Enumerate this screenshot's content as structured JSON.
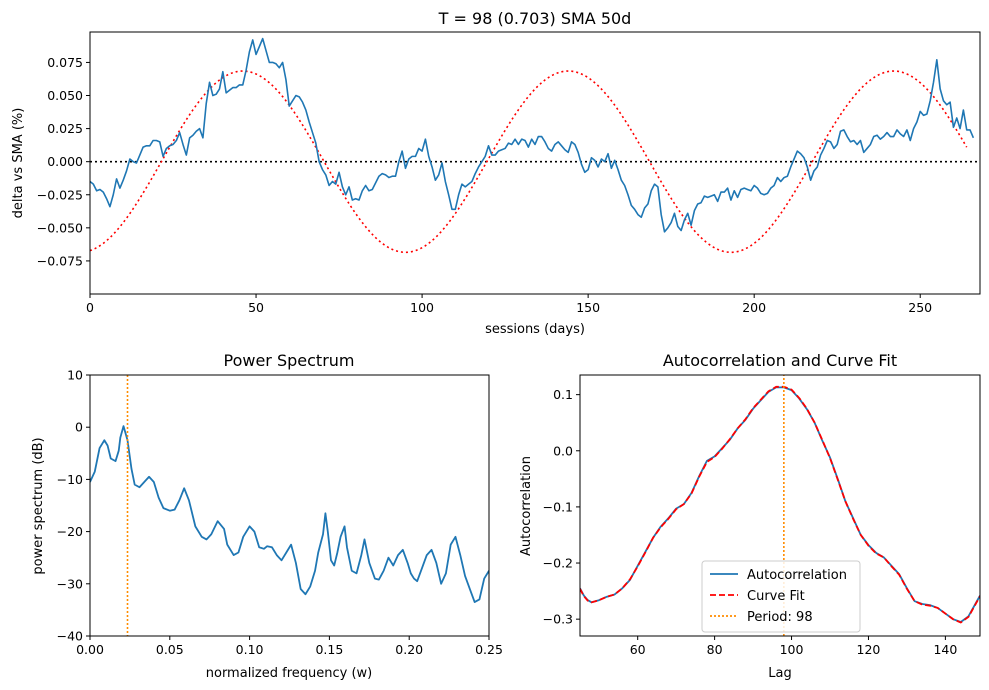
{
  "chart_data": [
    {
      "type": "line",
      "title": "T = 98 (0.703)      SMA 50d",
      "xlabel": "sessions (days)",
      "ylabel": "delta vs SMA (%)",
      "xlim": [
        0,
        268
      ],
      "ylim": [
        -0.1,
        0.098
      ],
      "xticks": [
        0,
        50,
        100,
        150,
        200,
        250
      ],
      "yticks": [
        -0.075,
        -0.05,
        -0.025,
        0.0,
        0.025,
        0.05,
        0.075
      ],
      "ytick_labels": [
        "−0.075",
        "−0.050",
        "−0.025",
        "0.000",
        "0.025",
        "0.050",
        "0.075"
      ],
      "grid": false,
      "colors": {
        "series": "#1f77b4",
        "fit": "#ff0000",
        "zero": "#000000"
      },
      "series": [
        {
          "kind": "data",
          "x_start": 0,
          "x_step": 1,
          "values": [
            -0.015,
            -0.017,
            -0.022,
            -0.021,
            -0.023,
            -0.028,
            -0.034,
            -0.025,
            -0.013,
            -0.02,
            -0.014,
            -0.007,
            0.002,
            0.0,
            -0.001,
            0.005,
            0.011,
            0.012,
            0.012,
            0.016,
            0.016,
            0.015,
            0.004,
            0.01,
            0.012,
            0.013,
            0.016,
            0.022,
            0.013,
            0.005,
            0.018,
            0.02,
            0.023,
            0.025,
            0.018,
            0.044,
            0.06,
            0.05,
            0.051,
            0.055,
            0.068,
            0.052,
            0.054,
            0.056,
            0.056,
            0.058,
            0.058,
            0.069,
            0.083,
            0.092,
            0.081,
            0.087,
            0.093,
            0.084,
            0.075,
            0.075,
            0.074,
            0.071,
            0.075,
            0.062,
            0.042,
            0.046,
            0.05,
            0.049,
            0.045,
            0.039,
            0.03,
            0.022,
            0.014,
            0.0,
            -0.006,
            -0.01,
            -0.018,
            -0.015,
            -0.017,
            -0.008,
            -0.019,
            -0.025,
            -0.019,
            -0.029,
            -0.028,
            -0.029,
            -0.022,
            -0.018,
            -0.022,
            -0.021,
            -0.016,
            -0.011,
            -0.009,
            -0.01,
            -0.012,
            -0.011,
            -0.011,
            0.0,
            0.008,
            -0.005,
            0.002,
            0.004,
            0.004,
            0.01,
            0.008,
            0.017,
            0.004,
            -0.004,
            -0.014,
            -0.01,
            -0.001,
            -0.015,
            -0.025,
            -0.036,
            -0.036,
            -0.025,
            -0.017,
            -0.019,
            -0.017,
            -0.015,
            -0.009,
            -0.004,
            0.0,
            0.004,
            0.012,
            0.005,
            0.005,
            0.008,
            0.009,
            0.01,
            0.014,
            0.013,
            0.017,
            0.013,
            0.017,
            0.016,
            0.011,
            0.017,
            0.013,
            0.019,
            0.019,
            0.015,
            0.01,
            0.008,
            0.013,
            0.015,
            0.012,
            0.009,
            0.007,
            0.015,
            0.013,
            0.007,
            -0.002,
            -0.008,
            -0.006,
            0.003,
            0.001,
            -0.004,
            0.002,
            0.0,
            0.006,
            -0.005,
            0.001,
            -0.006,
            -0.014,
            -0.018,
            -0.025,
            -0.033,
            -0.036,
            -0.04,
            -0.042,
            -0.035,
            -0.032,
            -0.022,
            -0.017,
            -0.019,
            -0.04,
            -0.053,
            -0.05,
            -0.046,
            -0.039,
            -0.049,
            -0.052,
            -0.044,
            -0.039,
            -0.048,
            -0.037,
            -0.032,
            -0.031,
            -0.026,
            -0.027,
            -0.026,
            -0.025,
            -0.03,
            -0.023,
            -0.023,
            -0.02,
            -0.029,
            -0.022,
            -0.027,
            -0.021,
            -0.02,
            -0.021,
            -0.022,
            -0.018,
            -0.02,
            -0.024,
            -0.025,
            -0.024,
            -0.02,
            -0.018,
            -0.012,
            -0.015,
            -0.012,
            -0.011,
            -0.004,
            0.002,
            0.008,
            0.006,
            0.003,
            -0.004,
            -0.014,
            -0.007,
            -0.004,
            0.005,
            0.01,
            0.016,
            0.015,
            0.01,
            0.013,
            0.023,
            0.024,
            0.019,
            0.015,
            0.016,
            0.013,
            0.016,
            0.007,
            0.01,
            0.013,
            0.019,
            0.02,
            0.017,
            0.019,
            0.022,
            0.019,
            0.019,
            0.024,
            0.021,
            0.019,
            0.024,
            0.016,
            0.025,
            0.03,
            0.038,
            0.035,
            0.036,
            0.046,
            0.06,
            0.077,
            0.055,
            0.046,
            0.043,
            0.045,
            0.026,
            0.033,
            0.025,
            0.039,
            0.024,
            0.024,
            0.018
          ]
        },
        {
          "kind": "fit",
          "function": "sine",
          "amplitude": 0.0685,
          "period": 98,
          "peak_x": 46,
          "x_range": [
            0,
            264
          ]
        },
        {
          "kind": "reference",
          "y": 0.0,
          "x_range": [
            0,
            268
          ]
        }
      ]
    },
    {
      "type": "line",
      "title": "Power Spectrum",
      "xlabel": "normalized frequency (w)",
      "ylabel": "power spectrum (dB)",
      "xlim": [
        0,
        0.25
      ],
      "ylim": [
        -40,
        10
      ],
      "xticks": [
        0.0,
        0.05,
        0.1,
        0.15,
        0.2,
        0.25
      ],
      "xtick_labels": [
        "0.00",
        "0.05",
        "0.10",
        "0.15",
        "0.20",
        "0.25"
      ],
      "yticks": [
        -40,
        -30,
        -20,
        -10,
        0,
        10
      ],
      "ytick_labels": [
        "−40",
        "−30",
        "−20",
        "−10",
        "0",
        "10"
      ],
      "grid": false,
      "colors": {
        "series": "#1f77b4",
        "marker": "#ff8c00"
      },
      "marker_x": 0.0235,
      "series": [
        {
          "x": [
            0.0,
            0.003,
            0.006,
            0.009,
            0.011,
            0.013,
            0.016,
            0.018,
            0.019,
            0.021,
            0.0235,
            0.026,
            0.028,
            0.031,
            0.034,
            0.037,
            0.04,
            0.043,
            0.046,
            0.05,
            0.053,
            0.056,
            0.059,
            0.062,
            0.066,
            0.07,
            0.073,
            0.076,
            0.08,
            0.084,
            0.086,
            0.09,
            0.093,
            0.096,
            0.1,
            0.103,
            0.106,
            0.109,
            0.111,
            0.114,
            0.117,
            0.12,
            0.123,
            0.126,
            0.129,
            0.132,
            0.135,
            0.138,
            0.141,
            0.143,
            0.146,
            0.1475,
            0.149,
            0.151,
            0.153,
            0.155,
            0.157,
            0.1595,
            0.161,
            0.164,
            0.167,
            0.17,
            0.172,
            0.175,
            0.1785,
            0.181,
            0.184,
            0.187,
            0.19,
            0.193,
            0.196,
            0.199,
            0.201,
            0.203,
            0.205,
            0.208,
            0.211,
            0.214,
            0.217,
            0.22,
            0.223,
            0.226,
            0.229,
            0.232,
            0.235,
            0.238,
            0.241,
            0.244,
            0.247,
            0.25
          ],
          "values": [
            -10.5,
            -8.5,
            -4.0,
            -2.5,
            -3.5,
            -6.0,
            -6.5,
            -4.5,
            -2.0,
            0.2,
            -2.5,
            -8.0,
            -11.0,
            -11.5,
            -10.5,
            -9.5,
            -10.5,
            -13.5,
            -15.5,
            -16.0,
            -15.8,
            -14.0,
            -11.7,
            -14.0,
            -19.0,
            -21.0,
            -21.5,
            -20.5,
            -18.0,
            -19.5,
            -22.5,
            -24.5,
            -24.0,
            -21.0,
            -19.0,
            -20.0,
            -23.0,
            -23.3,
            -22.8,
            -23.0,
            -24.5,
            -25.5,
            -24.0,
            -22.5,
            -26.0,
            -31.0,
            -32.0,
            -30.5,
            -27.5,
            -24.0,
            -20.5,
            -16.5,
            -20.0,
            -25.5,
            -26.5,
            -24.0,
            -21.0,
            -19.0,
            -23.0,
            -27.5,
            -28.0,
            -24.5,
            -21.5,
            -26.0,
            -29.0,
            -29.2,
            -27.5,
            -25.0,
            -26.5,
            -24.5,
            -23.5,
            -26.0,
            -28.0,
            -29.0,
            -29.5,
            -27.0,
            -24.5,
            -23.5,
            -26.0,
            -30.0,
            -28.0,
            -22.5,
            -21.0,
            -24.5,
            -28.5,
            -31.0,
            -33.5,
            -33.0,
            -29.0,
            -27.5
          ]
        }
      ]
    },
    {
      "type": "line",
      "title": "Autocorrelation and Curve Fit",
      "xlabel": "Lag",
      "ylabel": "Autocorrelation",
      "xlim": [
        45,
        149
      ],
      "ylim": [
        -0.33,
        0.135
      ],
      "xticks": [
        60,
        80,
        100,
        120,
        140
      ],
      "yticks": [
        -0.3,
        -0.2,
        -0.1,
        0.0,
        0.1
      ],
      "ytick_labels": [
        "−0.3",
        "−0.2",
        "−0.1",
        "0.0",
        "0.1"
      ],
      "grid": false,
      "legend": "lower-center",
      "colors": {
        "autocorr": "#1f77b4",
        "fit": "#ff0000",
        "period": "#ff8c00"
      },
      "marker_x": 98,
      "series": [
        {
          "name": "Autocorrelation",
          "x": [
            45,
            46,
            47,
            48,
            49,
            50,
            52,
            54,
            56,
            58,
            60,
            62,
            64,
            66,
            68,
            70,
            72,
            74,
            76,
            78,
            80,
            82,
            84,
            86,
            88,
            90,
            92,
            94,
            96,
            98,
            100,
            102,
            104,
            106,
            108,
            110,
            112,
            114,
            116,
            118,
            120,
            122,
            124,
            126,
            128,
            130,
            132,
            134,
            136,
            138,
            140,
            142,
            144,
            146,
            149
          ],
          "values": [
            -0.245,
            -0.258,
            -0.266,
            -0.27,
            -0.268,
            -0.266,
            -0.26,
            -0.256,
            -0.245,
            -0.23,
            -0.205,
            -0.18,
            -0.155,
            -0.135,
            -0.12,
            -0.103,
            -0.095,
            -0.075,
            -0.045,
            -0.018,
            -0.01,
            0.005,
            0.02,
            0.04,
            0.055,
            0.075,
            0.09,
            0.105,
            0.113,
            0.113,
            0.108,
            0.093,
            0.074,
            0.05,
            0.018,
            -0.012,
            -0.05,
            -0.09,
            -0.12,
            -0.15,
            -0.168,
            -0.182,
            -0.19,
            -0.205,
            -0.22,
            -0.245,
            -0.268,
            -0.273,
            -0.275,
            -0.28,
            -0.29,
            -0.3,
            -0.305,
            -0.295,
            -0.258
          ]
        },
        {
          "name": "Curve Fit",
          "x": [
            45,
            46,
            47,
            48,
            49,
            50,
            52,
            54,
            56,
            58,
            60,
            62,
            64,
            66,
            68,
            70,
            72,
            74,
            76,
            78,
            80,
            82,
            84,
            86,
            88,
            90,
            92,
            94,
            96,
            98,
            100,
            102,
            104,
            106,
            108,
            110,
            112,
            114,
            116,
            118,
            120,
            122,
            124,
            126,
            128,
            130,
            132,
            134,
            136,
            138,
            140,
            142,
            144,
            146,
            149
          ],
          "values": [
            -0.246,
            -0.259,
            -0.267,
            -0.27,
            -0.268,
            -0.266,
            -0.26,
            -0.256,
            -0.245,
            -0.229,
            -0.206,
            -0.181,
            -0.155,
            -0.136,
            -0.121,
            -0.104,
            -0.095,
            -0.076,
            -0.046,
            -0.02,
            -0.011,
            0.004,
            0.021,
            0.04,
            0.056,
            0.076,
            0.091,
            0.106,
            0.114,
            0.114,
            0.109,
            0.094,
            0.075,
            0.05,
            0.019,
            -0.013,
            -0.051,
            -0.09,
            -0.121,
            -0.15,
            -0.169,
            -0.183,
            -0.19,
            -0.206,
            -0.221,
            -0.246,
            -0.268,
            -0.274,
            -0.276,
            -0.28,
            -0.29,
            -0.3,
            -0.306,
            -0.296,
            -0.259
          ]
        },
        {
          "name": "Period: 98",
          "x": [
            98,
            98
          ],
          "values": [
            -0.33,
            0.135
          ]
        }
      ]
    }
  ]
}
